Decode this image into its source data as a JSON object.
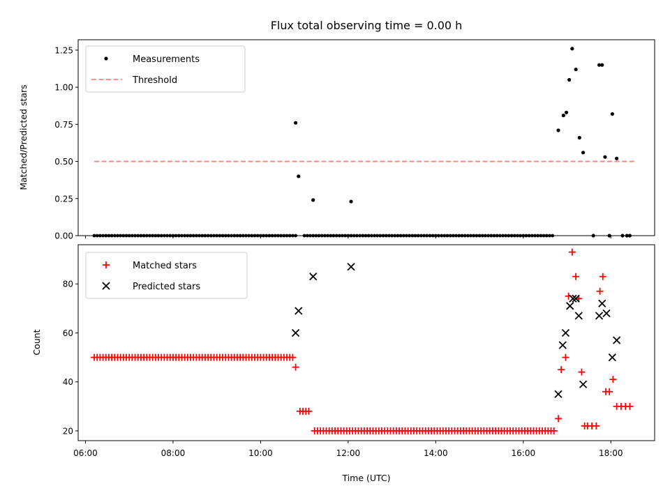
{
  "chart_data": [
    {
      "type": "scatter",
      "title": "Flux total observing time = 0.00 h",
      "ylabel": "Matched/Predicted stars",
      "xlabel": "",
      "xlim": [
        "05:50",
        "19:00"
      ],
      "ylim": [
        0,
        1.32
      ],
      "yticks": [
        "0.00",
        "0.25",
        "0.50",
        "0.75",
        "1.00",
        "1.25"
      ],
      "legend": {
        "position": "top-left",
        "entries": [
          "Measurements",
          "Threshold"
        ]
      },
      "series": [
        {
          "name": "Measurements",
          "color": "#000000",
          "marker": "dot",
          "zero_times_start": [
            "06:12",
            "10:48"
          ],
          "zero_times_mid": [
            "11:00",
            "16:43"
          ],
          "points": [
            [
              "10:48",
              0.76
            ],
            [
              "10:52",
              0.4
            ],
            [
              "11:12",
              0.24
            ],
            [
              "12:04",
              0.23
            ],
            [
              "16:48",
              0.71
            ],
            [
              "16:55",
              0.81
            ],
            [
              "16:59",
              0.83
            ],
            [
              "17:03",
              1.05
            ],
            [
              "17:07",
              1.26
            ],
            [
              "17:12",
              1.12
            ],
            [
              "17:17",
              0.66
            ],
            [
              "17:22",
              0.56
            ],
            [
              "17:36",
              0.0
            ],
            [
              "17:44",
              1.15
            ],
            [
              "17:48",
              1.15
            ],
            [
              "17:52",
              0.53
            ],
            [
              "17:58",
              0.0
            ],
            [
              "18:02",
              0.82
            ],
            [
              "18:08",
              0.52
            ],
            [
              "18:16",
              0.0
            ],
            [
              "18:22",
              0.0
            ],
            [
              "18:26",
              0.0
            ]
          ]
        },
        {
          "name": "Threshold",
          "color": "#ff7f7f",
          "style": "dashed",
          "x": [
            "06:12",
            "18:32"
          ],
          "y": [
            0.5,
            0.5
          ]
        }
      ]
    },
    {
      "type": "scatter",
      "title": "",
      "ylabel": "Count",
      "xlabel": "Time (UTC)",
      "xlim": [
        "05:50",
        "19:00"
      ],
      "ylim": [
        16,
        96
      ],
      "yticks": [
        "20",
        "40",
        "60",
        "80"
      ],
      "xticks": [
        "06:00",
        "08:00",
        "10:00",
        "12:00",
        "14:00",
        "16:00",
        "18:00"
      ],
      "legend": {
        "position": "top-left",
        "entries": [
          "Matched stars",
          "Predicted stars"
        ]
      },
      "series": [
        {
          "name": "Matched stars",
          "color": "#ff0000",
          "marker": "plus",
          "runs": [
            {
              "from": "06:12",
              "to": "10:44",
              "value": 50
            },
            {
              "from": "11:14",
              "to": "16:45",
              "value": 20
            }
          ],
          "points": [
            [
              "10:48",
              46
            ],
            [
              "10:54",
              28
            ],
            [
              "10:58",
              28
            ],
            [
              "11:02",
              28
            ],
            [
              "11:06",
              28
            ],
            [
              "16:48",
              25
            ],
            [
              "16:52",
              45
            ],
            [
              "16:58",
              50
            ],
            [
              "17:02",
              75
            ],
            [
              "17:07",
              93
            ],
            [
              "17:12",
              83
            ],
            [
              "17:16",
              74
            ],
            [
              "17:20",
              44
            ],
            [
              "17:24",
              22
            ],
            [
              "17:28",
              22
            ],
            [
              "17:34",
              22
            ],
            [
              "17:40",
              22
            ],
            [
              "17:45",
              77
            ],
            [
              "17:49",
              83
            ],
            [
              "17:53",
              36
            ],
            [
              "17:58",
              36
            ],
            [
              "18:03",
              41
            ],
            [
              "18:08",
              30
            ],
            [
              "18:14",
              30
            ],
            [
              "18:20",
              30
            ],
            [
              "18:26",
              30
            ]
          ]
        },
        {
          "name": "Predicted stars",
          "color": "#000000",
          "marker": "x",
          "points": [
            [
              "10:48",
              60
            ],
            [
              "10:52",
              69
            ],
            [
              "11:12",
              83
            ],
            [
              "12:04",
              87
            ],
            [
              "16:48",
              35
            ],
            [
              "16:54",
              55
            ],
            [
              "16:58",
              60
            ],
            [
              "17:04",
              71
            ],
            [
              "17:08",
              74
            ],
            [
              "17:12",
              74
            ],
            [
              "17:16",
              67
            ],
            [
              "17:22",
              39
            ],
            [
              "17:44",
              67
            ],
            [
              "17:48",
              72
            ],
            [
              "17:54",
              68
            ],
            [
              "18:02",
              50
            ],
            [
              "18:08",
              57
            ]
          ]
        }
      ]
    }
  ]
}
